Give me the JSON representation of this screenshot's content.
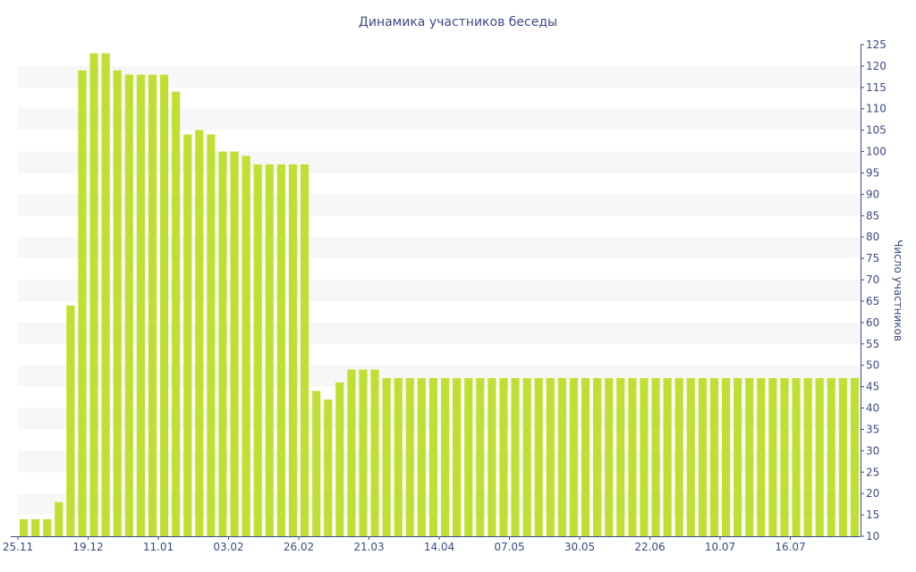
{
  "chart_data": {
    "type": "bar",
    "title": "Динамика участников беседы",
    "xlabel": "",
    "ylabel": "Число участников",
    "ylim": [
      10,
      125
    ],
    "ystep": 5,
    "y_axis_position": "right",
    "grid": "alternating horizontal bands",
    "legend": "none",
    "x_tick_labels": [
      "25.11",
      "19.12",
      "11.01",
      "03.02",
      "26.02",
      "21.03",
      "14.04",
      "07.05",
      "30.05",
      "22.06",
      "10.07",
      "16.07"
    ],
    "x_tick_bar_positions": [
      -0.5,
      5.5,
      11.5,
      17.5,
      23.5,
      29.5,
      35.5,
      41.5,
      47.5,
      53.5,
      59.5,
      65.5
    ],
    "values": [
      14,
      14,
      14,
      18,
      64,
      119,
      123,
      123,
      119,
      118,
      118,
      118,
      118,
      114,
      104,
      105,
      104,
      100,
      100,
      99,
      97,
      97,
      97,
      97,
      97,
      44,
      42,
      46,
      49,
      49,
      49,
      47,
      47,
      47,
      47,
      47,
      47,
      47,
      47,
      47,
      47,
      47,
      47,
      47,
      47,
      47,
      47,
      47,
      47,
      47,
      47,
      47,
      47,
      47,
      47,
      47,
      47,
      47,
      47,
      47,
      47,
      47,
      47,
      47,
      47,
      47,
      47,
      47,
      47,
      47,
      47,
      47
    ]
  },
  "colors": {
    "bar": "#bfe033",
    "band": "#f7f7f7",
    "text": "#3d4a86",
    "axis": "#3d4a86",
    "background": "#ffffff"
  }
}
